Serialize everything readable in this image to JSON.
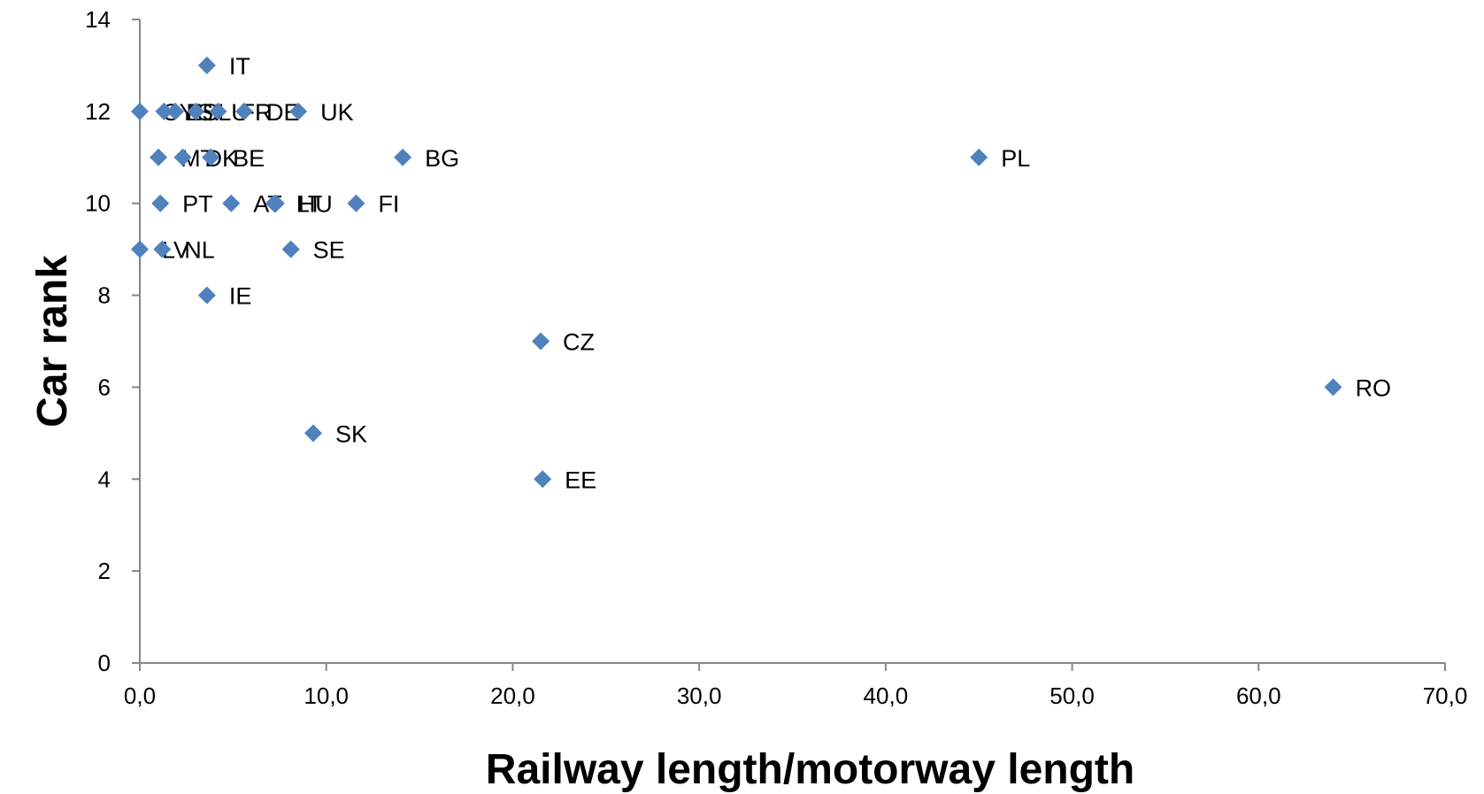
{
  "chart_data": {
    "type": "scatter",
    "title": "",
    "xlabel": "Railway length/motorway length",
    "ylabel": "Car rank",
    "xlim": [
      0,
      70
    ],
    "ylim": [
      0,
      14
    ],
    "x_ticks": [
      0,
      10,
      20,
      30,
      40,
      50,
      60,
      70
    ],
    "x_tick_labels": [
      "0,0",
      "10,0",
      "20,0",
      "30,0",
      "40,0",
      "50,0",
      "60,0",
      "70,0"
    ],
    "y_ticks": [
      0,
      2,
      4,
      6,
      8,
      10,
      12,
      14
    ],
    "y_tick_labels": [
      "0",
      "2",
      "4",
      "6",
      "8",
      "10",
      "12",
      "14"
    ],
    "grid": false,
    "legend": "none",
    "marker_color": "#4f81bd",
    "points": [
      {
        "label": "IT",
        "x": 3.6,
        "y": 13
      },
      {
        "label": "CY",
        "x": 0.0,
        "y": 12
      },
      {
        "label": "ES",
        "x": 1.3,
        "y": 12
      },
      {
        "label": "SI",
        "x": 1.9,
        "y": 12
      },
      {
        "label": "LU",
        "x": 3.0,
        "y": 12
      },
      {
        "label": "FR",
        "x": 4.2,
        "y": 12
      },
      {
        "label": "DE",
        "x": 5.6,
        "y": 12
      },
      {
        "label": "UK",
        "x": 8.5,
        "y": 12
      },
      {
        "label": "MT",
        "x": 1.0,
        "y": 11
      },
      {
        "label": "DK",
        "x": 2.3,
        "y": 11
      },
      {
        "label": "BE",
        "x": 3.8,
        "y": 11
      },
      {
        "label": "BG",
        "x": 14.1,
        "y": 11
      },
      {
        "label": "PL",
        "x": 45.0,
        "y": 11
      },
      {
        "label": "PT",
        "x": 1.1,
        "y": 10
      },
      {
        "label": "AT",
        "x": 4.9,
        "y": 10
      },
      {
        "label": "HU",
        "x": 7.3,
        "y": 10
      },
      {
        "label": "LT",
        "x": 7.2,
        "y": 10
      },
      {
        "label": "FI",
        "x": 11.6,
        "y": 10
      },
      {
        "label": "LV",
        "x": 0.0,
        "y": 9
      },
      {
        "label": "NL",
        "x": 1.2,
        "y": 9
      },
      {
        "label": "SE",
        "x": 8.1,
        "y": 9
      },
      {
        "label": "IE",
        "x": 3.6,
        "y": 8
      },
      {
        "label": "CZ",
        "x": 21.5,
        "y": 7
      },
      {
        "label": "RO",
        "x": 64.0,
        "y": 6
      },
      {
        "label": "SK",
        "x": 9.3,
        "y": 5
      },
      {
        "label": "EE",
        "x": 21.6,
        "y": 4
      }
    ]
  }
}
